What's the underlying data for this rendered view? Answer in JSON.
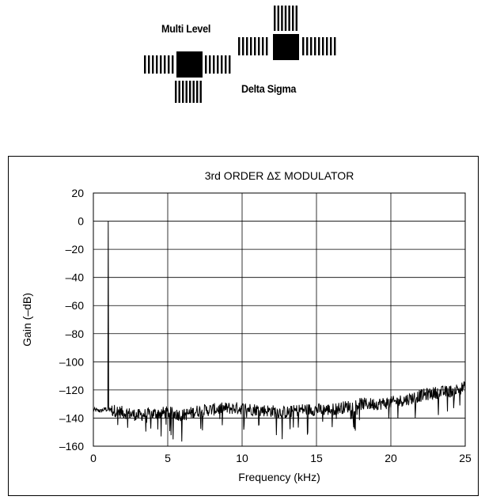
{
  "logo": {
    "line1": "Multi Level",
    "line2": "Delta Sigma"
  },
  "chart_data": {
    "type": "line",
    "title": "3rd ORDER ΔΣ MODULATOR",
    "xlabel": "Frequency (kHz)",
    "ylabel": "Gain (–dB)",
    "xlim": [
      0,
      25
    ],
    "ylim": [
      -160,
      20
    ],
    "x_ticks": [
      "0",
      "5",
      "10",
      "15",
      "20",
      "25"
    ],
    "y_ticks": [
      "20",
      "0",
      "–20",
      "–40",
      "–60",
      "–80",
      "–100",
      "–120",
      "–140",
      "–160"
    ],
    "grid": true,
    "series": [
      {
        "color": "#000000",
        "description_points": [
          {
            "x": 0.0,
            "y": -134
          },
          {
            "x": 0.5,
            "y": -135
          },
          {
            "x": 0.9,
            "y": -133
          },
          {
            "x": 1.0,
            "y": 0
          },
          {
            "x": 1.1,
            "y": -134
          },
          {
            "x": 2.0,
            "y": -136
          },
          {
            "x": 3.0,
            "y": -138
          },
          {
            "x": 4.0,
            "y": -137
          },
          {
            "x": 5.0,
            "y": -136
          },
          {
            "x": 6.0,
            "y": -138
          },
          {
            "x": 7.0,
            "y": -135
          },
          {
            "x": 8.0,
            "y": -134
          },
          {
            "x": 9.0,
            "y": -133
          },
          {
            "x": 10.0,
            "y": -133
          },
          {
            "x": 11.0,
            "y": -134
          },
          {
            "x": 12.0,
            "y": -135
          },
          {
            "x": 13.0,
            "y": -136
          },
          {
            "x": 14.0,
            "y": -134
          },
          {
            "x": 15.0,
            "y": -134
          },
          {
            "x": 16.0,
            "y": -134
          },
          {
            "x": 17.0,
            "y": -132
          },
          {
            "x": 18.0,
            "y": -130
          },
          {
            "x": 19.0,
            "y": -130
          },
          {
            "x": 20.0,
            "y": -129
          },
          {
            "x": 21.0,
            "y": -127
          },
          {
            "x": 22.0,
            "y": -124
          },
          {
            "x": 23.0,
            "y": -122
          },
          {
            "x": 24.0,
            "y": -121
          },
          {
            "x": 25.0,
            "y": -118
          }
        ]
      }
    ]
  }
}
